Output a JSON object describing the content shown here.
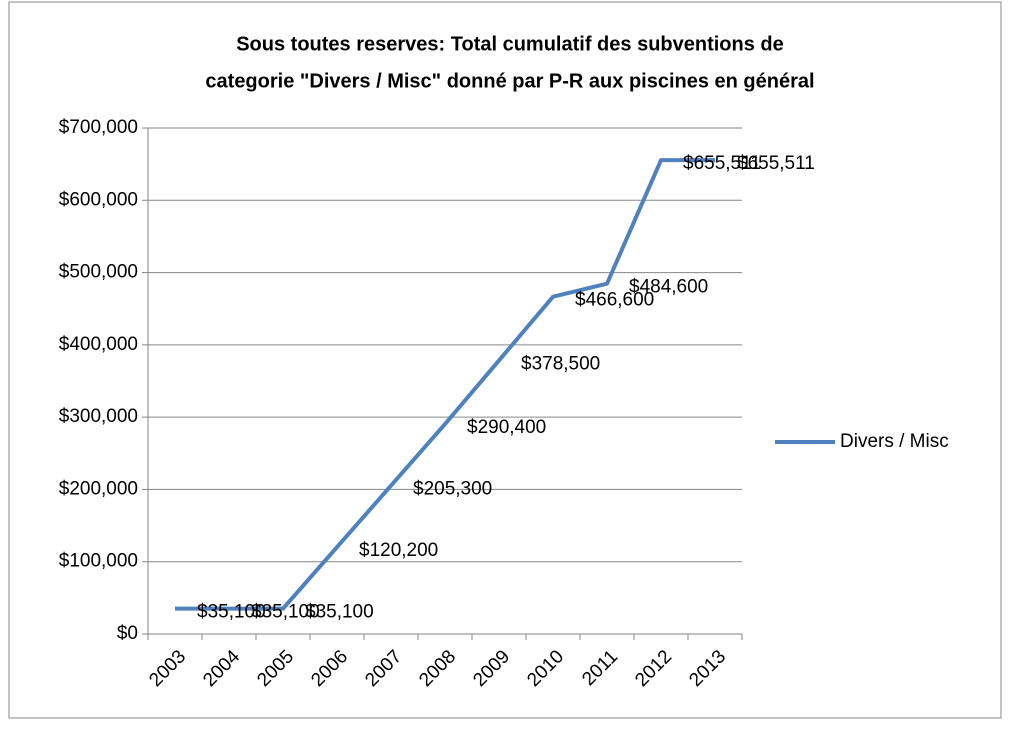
{
  "chart_data": {
    "type": "line",
    "title": [
      "Sous toutes reserves: Total cumulatif des subventions de",
      "categorie \"Divers / Misc\" donné par P-R aux piscines en général"
    ],
    "categories": [
      "2003",
      "2004",
      "2005",
      "2006",
      "2007",
      "2008",
      "2009",
      "2010",
      "2011",
      "2012",
      "2013"
    ],
    "series": [
      {
        "name": "Divers / Misc",
        "color": "#4f81bd",
        "values": [
          35100,
          35100,
          35100,
          120200,
          205300,
          290400,
          378500,
          466600,
          484600,
          655511,
          655511
        ],
        "value_labels": [
          "$35,100",
          "$35,100",
          "$35,100",
          "$120,200",
          "$205,300",
          "$290,400",
          "$378,500",
          "$466,600",
          "$484,600",
          "$655,511",
          "$655,511"
        ]
      }
    ],
    "ylim": [
      0,
      700000
    ],
    "yticks": [
      {
        "value": 0,
        "label": "$0"
      },
      {
        "value": 100000,
        "label": "$100,000"
      },
      {
        "value": 200000,
        "label": "$200,000"
      },
      {
        "value": 300000,
        "label": "$300,000"
      },
      {
        "value": 400000,
        "label": "$400,000"
      },
      {
        "value": 500000,
        "label": "$500,000"
      },
      {
        "value": 600000,
        "label": "$600,000"
      },
      {
        "value": 700000,
        "label": "$700,000"
      }
    ],
    "grid": true,
    "legend": "right"
  }
}
